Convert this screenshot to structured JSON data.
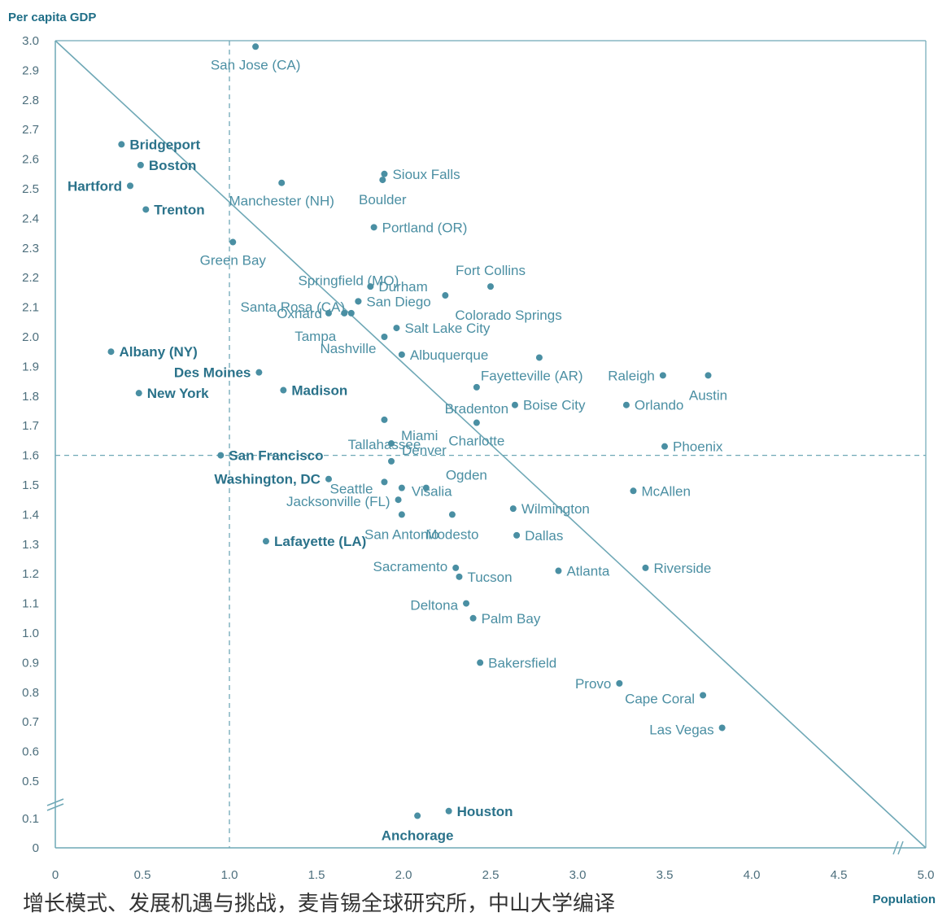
{
  "chart_data": {
    "type": "scatter",
    "ylabel": "Per capita GDP",
    "xlabel": "Population",
    "xlim": [
      0,
      5.0
    ],
    "ylim": [
      0,
      3.0
    ],
    "y_axis_break": "between 0.1 and 0.5",
    "x_axis_break": "between 4.5 and 5.0",
    "grid": false,
    "x_ticks": [
      "0",
      "0.5",
      "1.0",
      "1.5",
      "2.0",
      "2.5",
      "3.0",
      "3.5",
      "4.0",
      "4.5",
      "5.0"
    ],
    "y_ticks": [
      "0",
      "0.1",
      "0.5",
      "0.6",
      "0.7",
      "0.8",
      "0.9",
      "1.0",
      "1.1",
      "1.2",
      "1.3",
      "1.4",
      "1.5",
      "1.6",
      "1.7",
      "1.8",
      "1.9",
      "2.0",
      "2.1",
      "2.2",
      "2.3",
      "2.4",
      "2.5",
      "2.6",
      "2.7",
      "2.8",
      "2.9",
      "3.0"
    ],
    "diagonal_line": {
      "from": [
        0,
        3.0
      ],
      "to": [
        5.0,
        0
      ]
    },
    "reference_lines": {
      "vertical_x": 1.0,
      "horizontal_y": 1.6
    },
    "points": [
      {
        "label": "San Jose (CA)",
        "x": 1.15,
        "y": 2.98,
        "bold": false
      },
      {
        "label": "Bridgeport",
        "x": 0.38,
        "y": 2.65,
        "bold": true
      },
      {
        "label": "Boston",
        "x": 0.49,
        "y": 2.58,
        "bold": true
      },
      {
        "label": "Hartford",
        "x": 0.43,
        "y": 2.51,
        "bold": true
      },
      {
        "label": "Trenton",
        "x": 0.52,
        "y": 2.43,
        "bold": true
      },
      {
        "label": "Manchester (NH)",
        "x": 1.3,
        "y": 2.52,
        "bold": false
      },
      {
        "label": "Sioux Falls",
        "x": 1.89,
        "y": 2.55,
        "bold": false
      },
      {
        "label": "Boulder",
        "x": 1.88,
        "y": 2.53,
        "bold": false
      },
      {
        "label": "Portland (OR)",
        "x": 1.83,
        "y": 2.37,
        "bold": false
      },
      {
        "label": "Green Bay",
        "x": 1.02,
        "y": 2.32,
        "bold": false
      },
      {
        "label": "Springfield (MO)",
        "x": 1.74,
        "y": 2.12,
        "bold": false
      },
      {
        "label": "Fort Collins",
        "x": 2.5,
        "y": 2.17,
        "bold": false
      },
      {
        "label": "Durham",
        "x": 1.81,
        "y": 2.17,
        "bold": false
      },
      {
        "label": "Santa Rosa (CA)",
        "x": 1.7,
        "y": 2.08,
        "bold": false
      },
      {
        "label": "San Diego",
        "x": 1.74,
        "y": 2.12,
        "bold": false
      },
      {
        "label": "Colorado Springs",
        "x": 2.24,
        "y": 2.14,
        "bold": false
      },
      {
        "label": "Oxnard",
        "x": 1.57,
        "y": 2.08,
        "bold": false
      },
      {
        "label": "Tampa",
        "x": 1.66,
        "y": 2.08,
        "bold": false
      },
      {
        "label": "Salt Lake City",
        "x": 1.96,
        "y": 2.03,
        "bold": false
      },
      {
        "label": "Nashville",
        "x": 1.89,
        "y": 2.0,
        "bold": false
      },
      {
        "label": "Albuquerque",
        "x": 1.99,
        "y": 1.94,
        "bold": false
      },
      {
        "label": "Albany (NY)",
        "x": 0.32,
        "y": 1.95,
        "bold": true
      },
      {
        "label": "Des Moines",
        "x": 1.17,
        "y": 1.88,
        "bold": true
      },
      {
        "label": "Fayetteville (AR)",
        "x": 2.78,
        "y": 1.93,
        "bold": false
      },
      {
        "label": "Raleigh",
        "x": 3.49,
        "y": 1.87,
        "bold": false
      },
      {
        "label": "Austin",
        "x": 3.75,
        "y": 1.87,
        "bold": false
      },
      {
        "label": "New York",
        "x": 0.48,
        "y": 1.81,
        "bold": true
      },
      {
        "label": "Madison",
        "x": 1.31,
        "y": 1.82,
        "bold": true
      },
      {
        "label": "Tallahassee",
        "x": 1.89,
        "y": 1.72,
        "bold": false
      },
      {
        "label": "Bradenton",
        "x": 2.42,
        "y": 1.83,
        "bold": false
      },
      {
        "label": "Boise City",
        "x": 2.64,
        "y": 1.77,
        "bold": false
      },
      {
        "label": "Orlando",
        "x": 3.28,
        "y": 1.77,
        "bold": false
      },
      {
        "label": "Charlotte",
        "x": 2.42,
        "y": 1.71,
        "bold": false
      },
      {
        "label": "Phoenix",
        "x": 3.5,
        "y": 1.63,
        "bold": false
      },
      {
        "label": "San Francisco",
        "x": 0.95,
        "y": 1.6,
        "bold": true
      },
      {
        "label": "Miami",
        "x": 1.93,
        "y": 1.64,
        "bold": false
      },
      {
        "label": "Seattle",
        "x": 1.89,
        "y": 1.51,
        "bold": false
      },
      {
        "label": "Denver",
        "x": 1.93,
        "y": 1.58,
        "bold": false
      },
      {
        "label": "Ogden",
        "x": 2.13,
        "y": 1.49,
        "bold": false
      },
      {
        "label": "Washington, DC",
        "x": 1.57,
        "y": 1.52,
        "bold": true
      },
      {
        "label": "McAllen",
        "x": 3.32,
        "y": 1.48,
        "bold": false
      },
      {
        "label": "Jacksonville (FL)",
        "x": 1.97,
        "y": 1.45,
        "bold": false
      },
      {
        "label": "Visalia",
        "x": 1.99,
        "y": 1.49,
        "bold": false
      },
      {
        "label": "Wilmington",
        "x": 2.63,
        "y": 1.42,
        "bold": false
      },
      {
        "label": "San Antonio",
        "x": 1.99,
        "y": 1.4,
        "bold": false
      },
      {
        "label": "Modesto",
        "x": 2.28,
        "y": 1.4,
        "bold": false
      },
      {
        "label": "Dallas",
        "x": 2.65,
        "y": 1.33,
        "bold": false
      },
      {
        "label": "Lafayette (LA)",
        "x": 1.21,
        "y": 1.31,
        "bold": true
      },
      {
        "label": "Sacramento",
        "x": 2.3,
        "y": 1.22,
        "bold": false
      },
      {
        "label": "Tucson",
        "x": 2.32,
        "y": 1.19,
        "bold": false
      },
      {
        "label": "Atlanta",
        "x": 2.89,
        "y": 1.21,
        "bold": false
      },
      {
        "label": "Riverside",
        "x": 3.39,
        "y": 1.22,
        "bold": false
      },
      {
        "label": "Deltona",
        "x": 2.36,
        "y": 1.1,
        "bold": false
      },
      {
        "label": "Palm Bay",
        "x": 2.4,
        "y": 1.05,
        "bold": false
      },
      {
        "label": "Bakersfield",
        "x": 2.44,
        "y": 0.9,
        "bold": false
      },
      {
        "label": "Provo",
        "x": 3.24,
        "y": 0.83,
        "bold": false
      },
      {
        "label": "Cape Coral",
        "x": 3.72,
        "y": 0.79,
        "bold": false
      },
      {
        "label": "Las Vegas",
        "x": 3.83,
        "y": 0.68,
        "bold": false
      },
      {
        "label": "Houston",
        "x": 2.26,
        "y": 0.18,
        "bold": true
      },
      {
        "label": "Anchorage",
        "x": 2.08,
        "y": 0.13,
        "bold": true
      }
    ]
  },
  "caption": "增长模式、发展机遇与挑战，麦肯锡全球研究所，中山大学编译",
  "colors": {
    "axis": "#6fa8b6",
    "dot": "#4a8fa3",
    "label": "#4b8fa3",
    "label_bold": "#2a728a",
    "tick": "#4d6f7d"
  }
}
